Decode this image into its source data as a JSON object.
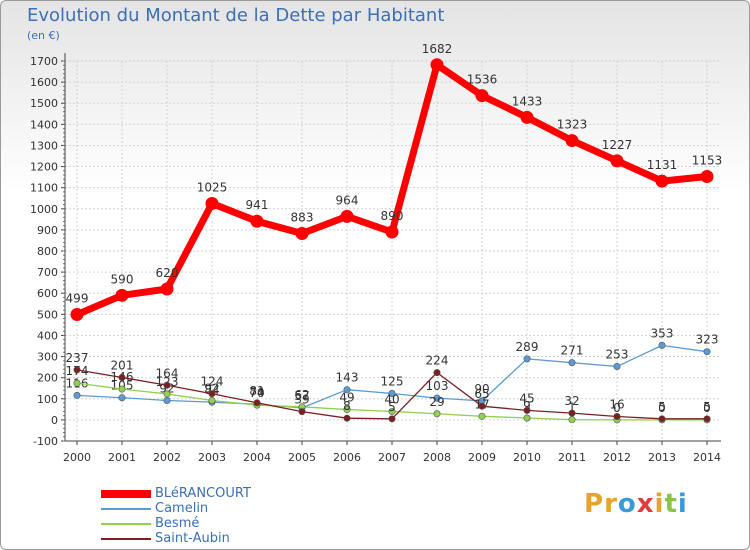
{
  "title": "Evolution du Montant de la Dette par Habitant",
  "subtitle": "(en €)",
  "logo": {
    "text": "Proxiti",
    "colors": [
      "#e8a42a",
      "#e8a42a",
      "#3b9ad9",
      "#e23b3b",
      "#e8a42a",
      "#8bc34a",
      "#3b9ad9"
    ]
  },
  "chart_data": {
    "type": "line",
    "x": [
      "2000",
      "2001",
      "2002",
      "2003",
      "2004",
      "2005",
      "2006",
      "2007",
      "2008",
      "2009",
      "2010",
      "2011",
      "2012",
      "2013",
      "2014"
    ],
    "ylim": [
      -100,
      1700
    ],
    "yticks": [
      -100,
      0,
      100,
      200,
      300,
      400,
      500,
      600,
      700,
      800,
      900,
      1000,
      1100,
      1200,
      1300,
      1400,
      1500,
      1600,
      1700
    ],
    "grid": true,
    "legend_position": "bottom-left",
    "series": [
      {
        "name": "BLéRANCOURT",
        "color": "#ff0000",
        "values": [
          499,
          590,
          620,
          1025,
          941,
          883,
          964,
          890,
          1682,
          1536,
          1433,
          1323,
          1227,
          1131,
          1153
        ]
      },
      {
        "name": "Camelin",
        "color": "#5b9bd5",
        "values": [
          116,
          105,
          92,
          84,
          74,
          57,
          143,
          125,
          103,
          90,
          289,
          271,
          253,
          353,
          323
        ]
      },
      {
        "name": "Besmé",
        "color": "#92d050",
        "values": [
          174,
          146,
          123,
          92,
          70,
          62,
          49,
          40,
          29,
          17,
          9,
          1,
          0,
          0,
          0
        ]
      },
      {
        "name": "Saint-Aubin",
        "color": "#7b2020",
        "values": [
          237,
          201,
          164,
          124,
          81,
          39,
          8,
          5,
          224,
          65,
          45,
          32,
          16,
          5,
          5
        ]
      }
    ],
    "labels": [
      [
        "499",
        "590",
        "620",
        "1025",
        "941",
        "883",
        "964",
        "890",
        "1682",
        "1536",
        "1433",
        "1323",
        "1227",
        "1131",
        "1153"
      ],
      [
        "116",
        "105",
        "92",
        "84",
        "74",
        "57",
        "143",
        "125",
        "103",
        "90",
        "289",
        "271",
        "253",
        "353",
        "323"
      ],
      [
        "174",
        "146",
        "123",
        "92",
        "70",
        "62",
        "49",
        "40",
        "29",
        "17",
        "9",
        "1",
        "0",
        "0",
        "0"
      ],
      [
        "237",
        "201",
        "164",
        "124",
        "81",
        "39",
        "8",
        "5",
        "224",
        "65",
        "45",
        "32",
        "16",
        "5",
        "5"
      ]
    ]
  }
}
